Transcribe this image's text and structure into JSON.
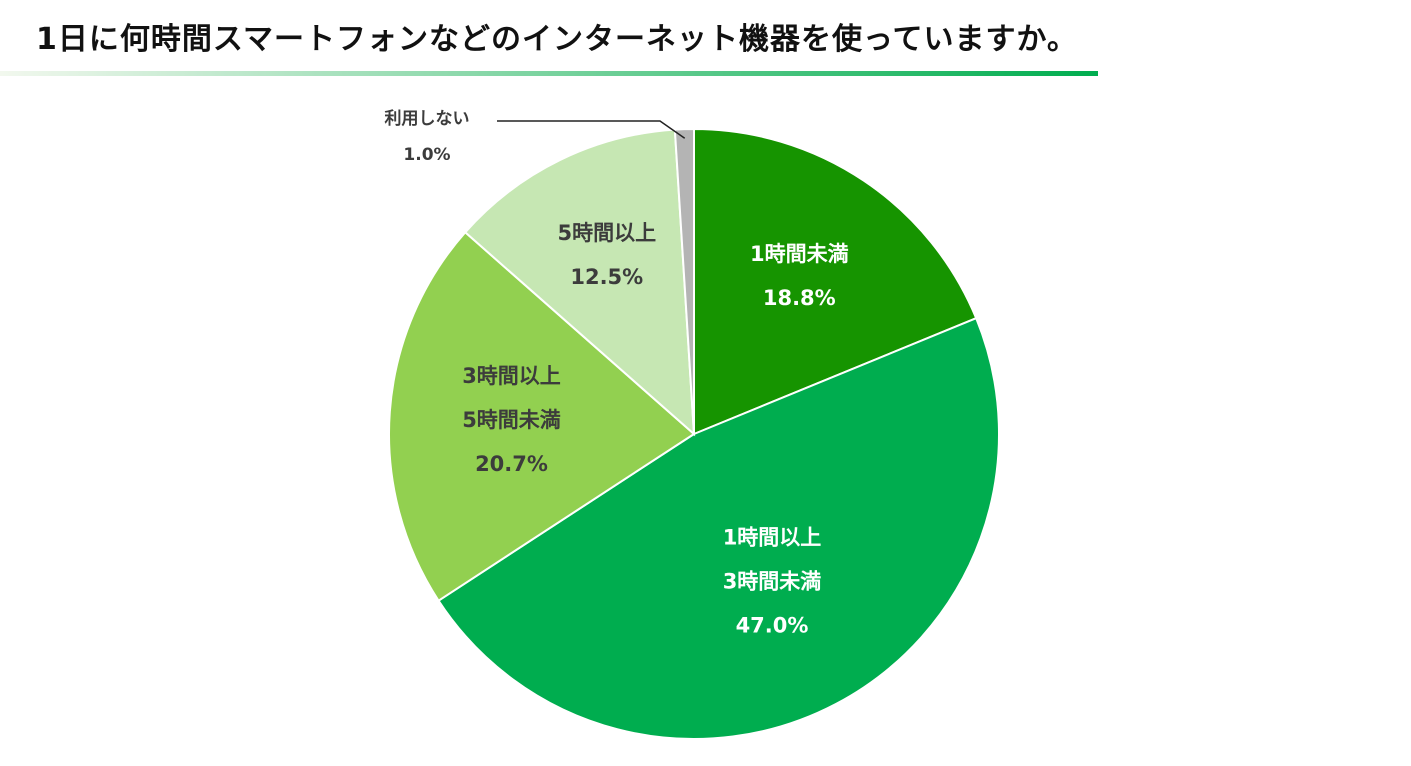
{
  "header": {
    "title": "1日に何時間スマートフォンなどのインターネット機器を使っていますか。"
  },
  "colors": {
    "rule_start": "#f2f8ee",
    "rule_end": "#00ad4f",
    "slice_edge": "#ffffff",
    "label_light": "#ffffff",
    "label_dark": "#3c3c3c",
    "leader_line": "#222222"
  },
  "chart_data": {
    "type": "pie",
    "title": "1日に何時間スマートフォンなどのインターネット機器を使っていますか。",
    "start": "12 o'clock",
    "direction": "clockwise",
    "legend": "none",
    "slices": [
      {
        "label_lines": [
          "1時間未満"
        ],
        "value": 18.8,
        "value_label": "18.8%",
        "color": "#169400",
        "label_color": "light"
      },
      {
        "label_lines": [
          "1時間以上",
          "3時間未満"
        ],
        "value": 47.0,
        "value_label": "47.0%",
        "color": "#00ad4f",
        "label_color": "light"
      },
      {
        "label_lines": [
          "3時間以上",
          "5時間未満"
        ],
        "value": 20.7,
        "value_label": "20.7%",
        "color": "#92d050",
        "label_color": "dark"
      },
      {
        "label_lines": [
          "5時間以上"
        ],
        "value": 12.5,
        "value_label": "12.5%",
        "color": "#c6e7b3",
        "label_color": "dark"
      },
      {
        "label_lines": [
          "利用しない"
        ],
        "value": 1.0,
        "value_label": "1.0%",
        "color": "#b4b4b4",
        "label_color": "dark",
        "callout": true
      }
    ]
  }
}
